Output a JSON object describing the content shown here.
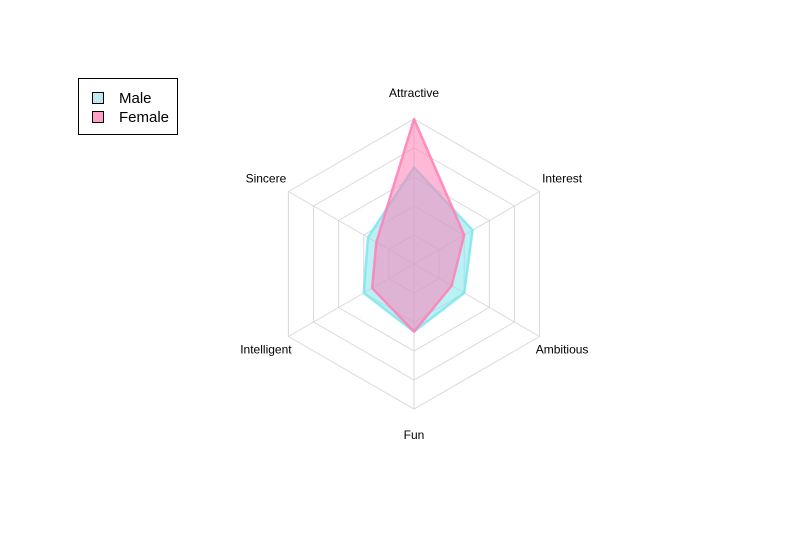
{
  "chart_data": {
    "type": "radar",
    "axes": [
      "Attractive",
      "Interest",
      "Ambitious",
      "Fun",
      "Intelligent",
      "Sincere"
    ],
    "range": [
      0,
      0.3
    ],
    "grid_levels": 5,
    "grid": true,
    "legend_position": "top-left",
    "series": [
      {
        "name": "Male",
        "values": [
          0.2,
          0.14,
          0.12,
          0.14,
          0.12,
          0.11
        ],
        "color": "#7fe5ec"
      },
      {
        "name": "Female",
        "values": [
          0.3,
          0.12,
          0.09,
          0.14,
          0.1,
          0.09
        ],
        "color": "#ff7fb6"
      }
    ]
  }
}
